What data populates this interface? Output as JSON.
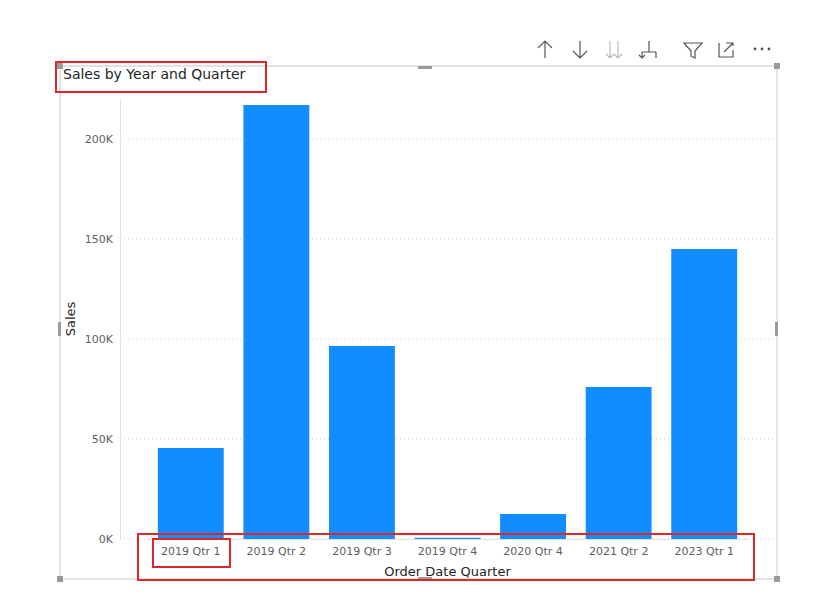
{
  "chart_data": {
    "type": "bar",
    "title": "Sales by Year and Quarter",
    "x_label": "Order Date Quarter",
    "y_label": "Sales",
    "categories": [
      "2019 Qtr 1",
      "2019 Qtr 2",
      "2019 Qtr 3",
      "2019 Qtr 4",
      "2020 Qtr 4",
      "2021 Qtr 2",
      "2023 Qtr 1"
    ],
    "values": [
      45500,
      217000,
      96500,
      600,
      12500,
      76000,
      145000
    ],
    "color": "#118dff",
    "ylim": [
      0,
      220000
    ],
    "yticks": [
      {
        "value": 0,
        "label": "0K"
      },
      {
        "value": 50000,
        "label": "50K"
      },
      {
        "value": 100000,
        "label": "100K"
      },
      {
        "value": 150000,
        "label": "150K"
      },
      {
        "value": 200000,
        "label": "200K"
      }
    ],
    "grid": true
  }
}
